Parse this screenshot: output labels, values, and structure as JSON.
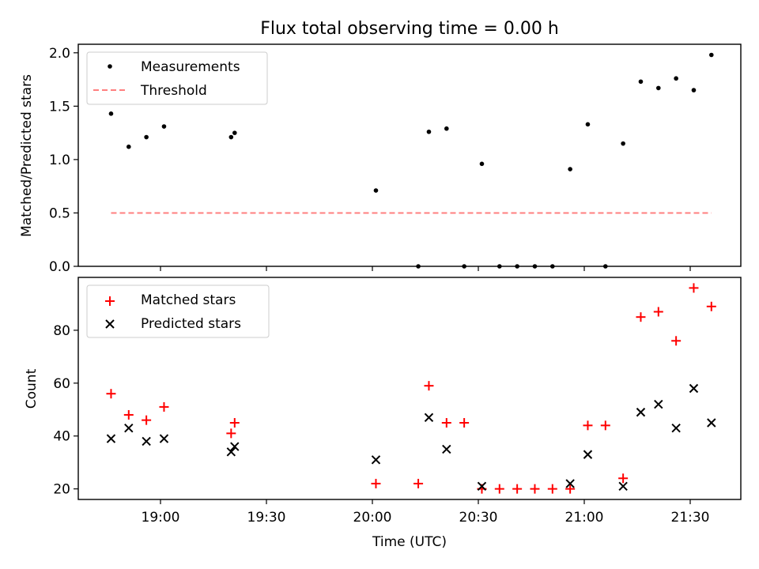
{
  "chart_data": {
    "type": "scatter",
    "title": "Flux total observing time = 0.00 h",
    "xlabel": "Time (UTC)",
    "x_ticks": [
      "19:00",
      "19:30",
      "20:00",
      "20:30",
      "21:00",
      "21:30"
    ],
    "panels": [
      {
        "ylabel": "Matched/Predicted stars",
        "ylim": [
          0,
          2.08
        ],
        "y_ticks": [
          "0.0",
          "0.5",
          "1.0",
          "1.5",
          "2.0"
        ],
        "legend": "upper left",
        "series": [
          {
            "name": "Measurements",
            "marker": "dot",
            "color": "#000000",
            "x": [
              "18:46",
              "18:51",
              "18:56",
              "19:01",
              "19:20",
              "19:21",
              "20:01",
              "20:13",
              "20:16",
              "20:21",
              "20:26",
              "20:31",
              "20:36",
              "20:41",
              "20:46",
              "20:51",
              "20:56",
              "21:01",
              "21:06",
              "21:11",
              "21:16",
              "21:21",
              "21:26",
              "21:31",
              "21:36"
            ],
            "y": [
              1.43,
              1.12,
              1.21,
              1.31,
              1.21,
              1.25,
              0.71,
              0.0,
              1.26,
              1.29,
              0.0,
              0.96,
              0.0,
              0.0,
              0.0,
              0.0,
              0.91,
              1.33,
              0.0,
              1.15,
              1.73,
              1.67,
              1.76,
              1.65,
              1.98
            ]
          },
          {
            "name": "Threshold",
            "marker": "dashed-line",
            "color": "#ff7f7f",
            "x": [
              "18:46",
              "21:36"
            ],
            "y": [
              0.5,
              0.5
            ]
          }
        ]
      },
      {
        "ylabel": "Count",
        "ylim": [
          16,
          100
        ],
        "y_ticks": [
          "20",
          "40",
          "60",
          "80"
        ],
        "legend": "upper left",
        "series": [
          {
            "name": "Matched stars",
            "marker": "plus",
            "color": "#ff0000",
            "x": [
              "18:46",
              "18:51",
              "18:56",
              "19:01",
              "19:20",
              "19:21",
              "20:01",
              "20:13",
              "20:16",
              "20:21",
              "20:26",
              "20:31",
              "20:36",
              "20:41",
              "20:46",
              "20:51",
              "20:56",
              "21:01",
              "21:06",
              "21:11",
              "21:16",
              "21:21",
              "21:26",
              "21:31",
              "21:36"
            ],
            "y": [
              56,
              48,
              46,
              51,
              41,
              45,
              22,
              22,
              59,
              45,
              45,
              20,
              20,
              20,
              20,
              20,
              20,
              44,
              44,
              24,
              85,
              87,
              76,
              96,
              89
            ]
          },
          {
            "name": "Predicted stars",
            "marker": "x",
            "color": "#000000",
            "x": [
              "18:46",
              "18:51",
              "18:56",
              "19:01",
              "19:20",
              "19:21",
              "20:01",
              "20:16",
              "20:21",
              "20:31",
              "20:56",
              "21:01",
              "21:11",
              "21:16",
              "21:21",
              "21:26",
              "21:31",
              "21:36"
            ],
            "y": [
              39,
              43,
              38,
              39,
              34,
              36,
              31,
              47,
              35,
              21,
              22,
              33,
              21,
              49,
              52,
              43,
              58,
              45
            ]
          }
        ]
      }
    ]
  }
}
